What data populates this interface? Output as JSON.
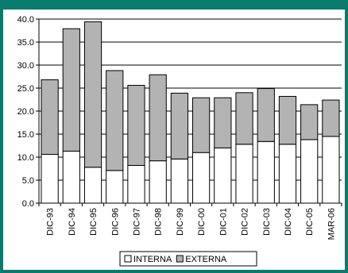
{
  "chart_data": {
    "type": "bar",
    "stacked": true,
    "categories": [
      "DIC-93",
      "DIC-94",
      "DIC-95",
      "DIC-96",
      "DIC-97",
      "DIC-98",
      "DIC-99",
      "DIC-00",
      "DIC-01",
      "DIC-02",
      "DIC-03",
      "DIC-04",
      "DIC-05",
      "MAR-06"
    ],
    "series": [
      {
        "name": "INTERNA",
        "color": "#ffffff",
        "values": [
          10.6,
          11.3,
          7.8,
          7.1,
          8.2,
          9.2,
          9.6,
          11.0,
          12.0,
          12.8,
          13.4,
          12.8,
          13.8,
          14.5
        ]
      },
      {
        "name": "EXTERNA",
        "color": "#b3b3b3",
        "values": [
          16.2,
          26.6,
          31.6,
          21.7,
          17.4,
          18.7,
          14.3,
          11.9,
          10.9,
          11.2,
          11.5,
          10.4,
          7.6,
          7.9
        ]
      }
    ],
    "ylim": [
      0,
      40
    ],
    "yticks": [
      "0.0",
      "5.0",
      "10.0",
      "15.0",
      "20.0",
      "25.0",
      "30.0",
      "35.0",
      "40.0"
    ],
    "grid": true,
    "legend_position": "bottom",
    "title": "",
    "xlabel": "",
    "ylabel": ""
  }
}
